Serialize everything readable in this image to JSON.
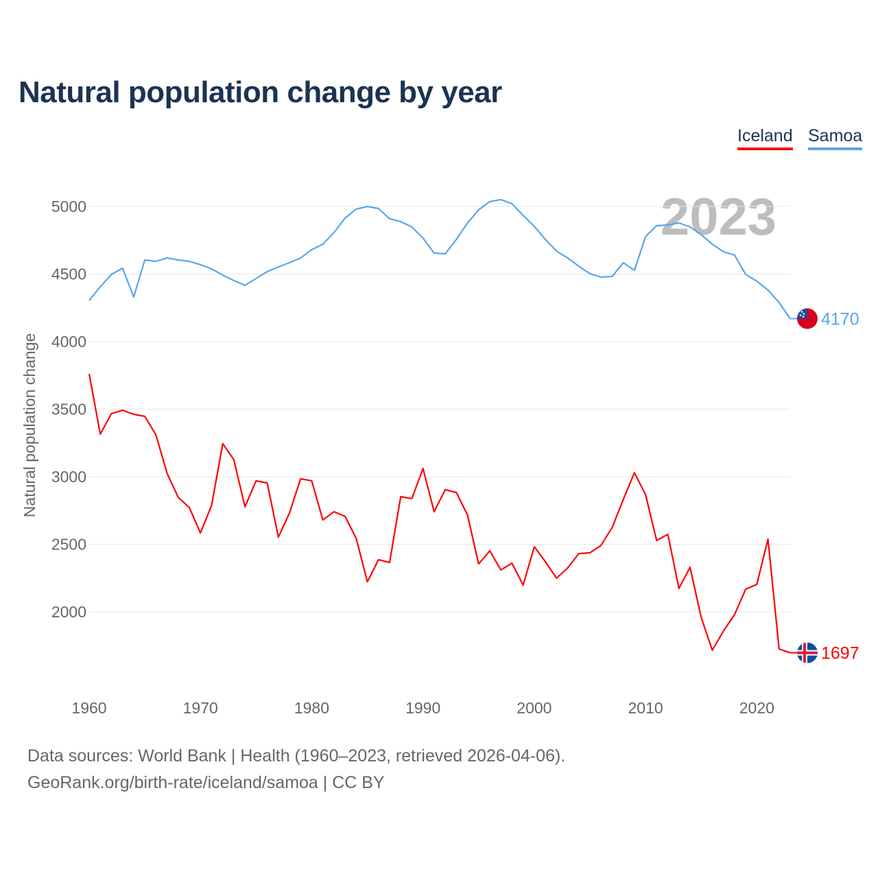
{
  "title": "Natural population change by year",
  "legend": [
    {
      "label": "Iceland",
      "color": "#ff0000"
    },
    {
      "label": "Samoa",
      "color": "#5aa5ea"
    }
  ],
  "source_line1": "Data sources: World Bank | Health (1960–2023, retrieved 2026-04-06).",
  "source_line2": "GeoRank.org/birth-rate/iceland/samoa | CC BY",
  "chart_data": {
    "type": "line",
    "title": "Natural population change by year",
    "xlabel": "",
    "ylabel": "Natural population change",
    "year_watermark": "2023",
    "xlim": [
      1960,
      2023
    ],
    "ylim": [
      1500,
      5200
    ],
    "xticks": [
      1960,
      1970,
      1980,
      1990,
      2000,
      2010,
      2020
    ],
    "yticks": [
      2000,
      2500,
      3000,
      3500,
      4000,
      4500,
      5000
    ],
    "grid": true,
    "legend_position": "top-right",
    "x": [
      1960,
      1961,
      1962,
      1963,
      1964,
      1965,
      1966,
      1967,
      1968,
      1969,
      1970,
      1971,
      1972,
      1973,
      1974,
      1975,
      1976,
      1977,
      1978,
      1979,
      1980,
      1981,
      1982,
      1983,
      1984,
      1985,
      1986,
      1987,
      1988,
      1989,
      1990,
      1991,
      1992,
      1993,
      1994,
      1995,
      1996,
      1997,
      1998,
      1999,
      2000,
      2001,
      2002,
      2003,
      2004,
      2005,
      2006,
      2007,
      2008,
      2009,
      2010,
      2011,
      2012,
      2013,
      2014,
      2015,
      2016,
      2017,
      2018,
      2019,
      2020,
      2021,
      2022,
      2023
    ],
    "series": [
      {
        "name": "Iceland",
        "color": "#ff0000",
        "end_label": "1697",
        "values": [
          3761,
          3315,
          3467,
          3492,
          3462,
          3447,
          3310,
          3025,
          2848,
          2772,
          2584,
          2787,
          3244,
          3127,
          2777,
          2970,
          2954,
          2553,
          2731,
          2985,
          2970,
          2680,
          2741,
          2706,
          2543,
          2223,
          2386,
          2365,
          2853,
          2838,
          3061,
          2741,
          2904,
          2883,
          2716,
          2355,
          2452,
          2310,
          2360,
          2198,
          2482,
          2371,
          2249,
          2325,
          2431,
          2437,
          2492,
          2624,
          2832,
          3030,
          2868,
          2528,
          2574,
          2173,
          2330,
          1959,
          1716,
          1858,
          1980,
          2168,
          2203,
          2538,
          1726,
          1697
        ]
      },
      {
        "name": "Samoa",
        "color": "#5aa5ea",
        "end_label": "4170",
        "values": [
          4305,
          4406,
          4497,
          4543,
          4330,
          4604,
          4594,
          4619,
          4604,
          4594,
          4569,
          4538,
          4492,
          4452,
          4416,
          4467,
          4518,
          4553,
          4584,
          4619,
          4680,
          4721,
          4807,
          4914,
          4980,
          5000,
          4985,
          4909,
          4888,
          4848,
          4766,
          4655,
          4650,
          4756,
          4878,
          4975,
          5036,
          5051,
          5020,
          4934,
          4853,
          4756,
          4670,
          4619,
          4558,
          4503,
          4477,
          4482,
          4584,
          4528,
          4777,
          4858,
          4863,
          4878,
          4848,
          4792,
          4721,
          4665,
          4640,
          4497,
          4447,
          4381,
          4289,
          4170
        ]
      }
    ]
  }
}
